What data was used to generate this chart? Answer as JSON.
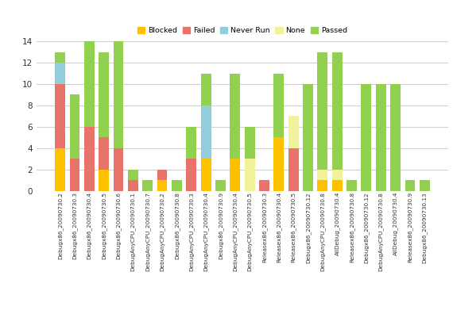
{
  "categories": [
    "Debugx86_20090730.2",
    "Debugx86_20090730.3",
    "Debugx86_20090730.4",
    "Debugx86_20090730.5",
    "Debugx86_20090730.6",
    "DebugAnyCPU_20090730.1",
    "DebugAnyCPU_20090730.7",
    "DebugAnyCPU_20090730.2",
    "Debugx86_20090730.8",
    "DebugAnyCPU_20090730.3",
    "DebugAnyCPU_20090730.4",
    "Debugx86_20090730.9",
    "DebugAnyCPU_20090730.4",
    "DebugAnyCPU_20090730.5",
    "Releasex86_20090730.3",
    "Releasex86_20090730.4",
    "Releasex86_20090730.5",
    "Debugx86_20090730.12",
    "DebugAnyCPU_20090730.8",
    "AllDebug_20090730.4",
    "Releasex86_20090730.8",
    "Debugx86_20090730.12",
    "DebugAnyCPU_20090730.8",
    "AllDebug_20090730.4",
    "Releasex86_20090730.9",
    "Debugx86_20090730.13"
  ],
  "series": {
    "Blocked": [
      4,
      0,
      0,
      2,
      0,
      0,
      0,
      1,
      0,
      0,
      3,
      0,
      3,
      0,
      0,
      5,
      0,
      0,
      1,
      1,
      0,
      0,
      0,
      0,
      0,
      0
    ],
    "Failed": [
      6,
      3,
      6,
      3,
      4,
      1,
      0,
      1,
      0,
      3,
      0,
      0,
      0,
      0,
      1,
      0,
      4,
      0,
      0,
      0,
      0,
      0,
      0,
      0,
      0,
      0
    ],
    "Never Run": [
      2,
      0,
      0,
      0,
      0,
      0,
      0,
      0,
      0,
      0,
      5,
      0,
      0,
      0,
      0,
      0,
      0,
      0,
      0,
      0,
      0,
      0,
      0,
      0,
      0,
      0
    ],
    "None": [
      0,
      0,
      0,
      0,
      0,
      0,
      0,
      0,
      0,
      0,
      0,
      0,
      0,
      3,
      0,
      0,
      3,
      0,
      1,
      1,
      0,
      0,
      0,
      0,
      0,
      0
    ],
    "Passed": [
      1,
      6,
      8,
      8,
      10,
      1,
      1,
      0,
      1,
      3,
      3,
      1,
      8,
      3,
      0,
      6,
      0,
      10,
      11,
      11,
      1,
      10,
      10,
      10,
      1,
      1
    ]
  },
  "colors": {
    "Blocked": "#FFC000",
    "Failed": "#E8736A",
    "Never Run": "#92CDDC",
    "None": "#F2F29A",
    "Passed": "#92D050"
  },
  "ylim": [
    0,
    14
  ],
  "yticks": [
    0,
    2,
    4,
    6,
    8,
    10,
    12,
    14
  ],
  "background_color": "#ffffff",
  "grid_color": "#d0d0d0"
}
